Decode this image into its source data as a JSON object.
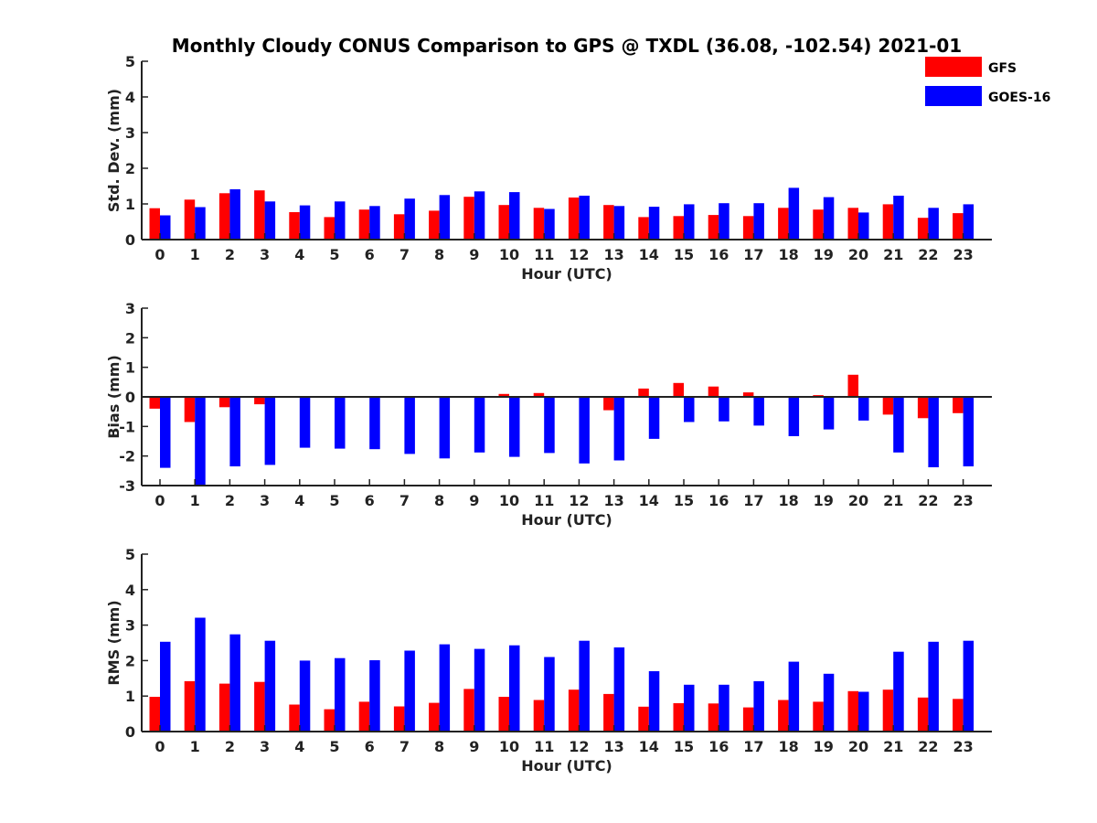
{
  "figure_title": "Monthly Cloudy CONUS Comparison to GPS @ TXDL (36.08, -102.54) 2021-01",
  "legend": [
    {
      "name": "GFS",
      "color": "#ff0000"
    },
    {
      "name": "GOES-16",
      "color": "#0000ff"
    }
  ],
  "chart_data": [
    {
      "type": "bar",
      "title": "Monthly Cloudy CONUS Comparison to GPS @ TXDL (36.08, -102.54) 2021-01",
      "xlabel": "Hour (UTC)",
      "ylabel": "Std. Dev. (mm)",
      "ylim": [
        0,
        5
      ],
      "yticks": [
        0,
        1,
        2,
        3,
        4,
        5
      ],
      "categories": [
        "0",
        "1",
        "2",
        "3",
        "4",
        "5",
        "6",
        "7",
        "8",
        "9",
        "10",
        "11",
        "12",
        "13",
        "14",
        "15",
        "16",
        "17",
        "18",
        "19",
        "20",
        "21",
        "22",
        "23"
      ],
      "series": [
        {
          "name": "GFS",
          "color": "#ff0000",
          "values": [
            0.88,
            1.12,
            1.3,
            1.38,
            0.77,
            0.63,
            0.84,
            0.71,
            0.81,
            1.2,
            0.97,
            0.89,
            1.18,
            0.97,
            0.63,
            0.66,
            0.69,
            0.66,
            0.89,
            0.84,
            0.89,
            0.99,
            0.61,
            0.74
          ]
        },
        {
          "name": "GOES-16",
          "color": "#0000ff",
          "values": [
            0.68,
            0.91,
            1.41,
            1.07,
            0.96,
            1.07,
            0.94,
            1.15,
            1.25,
            1.35,
            1.33,
            0.86,
            1.23,
            0.94,
            0.92,
            0.99,
            1.02,
            1.02,
            1.45,
            1.19,
            0.76,
            1.23,
            0.89,
            0.99
          ]
        }
      ]
    },
    {
      "type": "bar",
      "title": "",
      "xlabel": "Hour (UTC)",
      "ylabel": "Bias (mm)",
      "ylim": [
        -3,
        3
      ],
      "yticks": [
        -3,
        -2,
        -1,
        0,
        1,
        2,
        3
      ],
      "categories": [
        "0",
        "1",
        "2",
        "3",
        "4",
        "5",
        "6",
        "7",
        "8",
        "9",
        "10",
        "11",
        "12",
        "13",
        "14",
        "15",
        "16",
        "17",
        "18",
        "19",
        "20",
        "21",
        "22",
        "23"
      ],
      "series": [
        {
          "name": "GFS",
          "color": "#ff0000",
          "values": [
            -0.4,
            -0.85,
            -0.35,
            -0.25,
            -0.02,
            -0.02,
            0,
            -0.03,
            -0.03,
            0,
            0.1,
            0.13,
            0,
            -0.45,
            0.28,
            0.47,
            0.35,
            0.15,
            -0.03,
            0.06,
            0.75,
            -0.6,
            -0.72,
            -0.55
          ]
        },
        {
          "name": "GOES-16",
          "color": "#0000ff",
          "values": [
            -2.4,
            -3.0,
            -2.35,
            -2.3,
            -1.72,
            -1.75,
            -1.77,
            -1.93,
            -2.08,
            -1.88,
            -2.03,
            -1.9,
            -2.25,
            -2.15,
            -1.42,
            -0.85,
            -0.83,
            -0.97,
            -1.33,
            -1.1,
            -0.8,
            -1.88,
            -2.38,
            -2.35
          ]
        }
      ]
    },
    {
      "type": "bar",
      "title": "",
      "xlabel": "Hour (UTC)",
      "ylabel": "RMS (mm)",
      "ylim": [
        0,
        5
      ],
      "yticks": [
        0,
        1,
        2,
        3,
        4,
        5
      ],
      "categories": [
        "0",
        "1",
        "2",
        "3",
        "4",
        "5",
        "6",
        "7",
        "8",
        "9",
        "10",
        "11",
        "12",
        "13",
        "14",
        "15",
        "16",
        "17",
        "18",
        "19",
        "20",
        "21",
        "22",
        "23"
      ],
      "series": [
        {
          "name": "GFS",
          "color": "#ff0000",
          "values": [
            0.98,
            1.42,
            1.35,
            1.4,
            0.76,
            0.63,
            0.84,
            0.71,
            0.81,
            1.2,
            0.98,
            0.89,
            1.18,
            1.06,
            0.7,
            0.8,
            0.79,
            0.68,
            0.89,
            0.84,
            1.14,
            1.18,
            0.96,
            0.92
          ]
        },
        {
          "name": "GOES-16",
          "color": "#0000ff",
          "values": [
            2.53,
            3.21,
            2.74,
            2.56,
            2.0,
            2.07,
            2.01,
            2.28,
            2.46,
            2.33,
            2.43,
            2.1,
            2.56,
            2.37,
            1.7,
            1.32,
            1.32,
            1.42,
            1.97,
            1.63,
            1.12,
            2.25,
            2.53,
            2.56
          ]
        }
      ]
    }
  ]
}
